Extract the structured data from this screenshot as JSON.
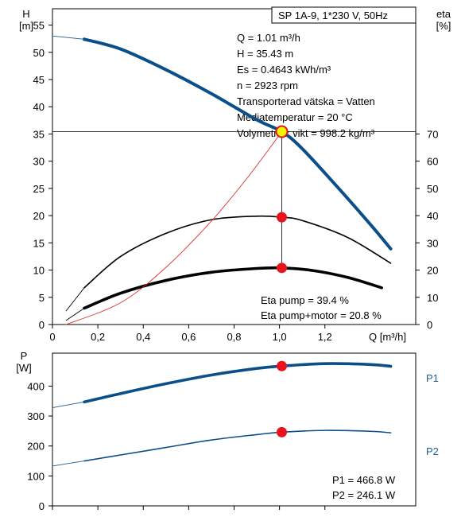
{
  "colors": {
    "curve_blue": "#0a4f8a",
    "thin_blue": "#1f5f94",
    "black": "#000000",
    "red_marker": "#e8141c",
    "yellow_marker": "#f5f500",
    "thin_red": "#e0302c"
  },
  "chart_data": [
    {
      "type": "line",
      "title": "SP 1A-9, 1*230 V, 50Hz",
      "xlabel": "Q [m³/h]",
      "ylabel": "H\n[m]",
      "ylabel_parts": [
        "H",
        "[m]"
      ],
      "y2label_parts": [
        "eta",
        "[%]"
      ],
      "xlim": [
        0,
        1.6
      ],
      "ylim": [
        0,
        58
      ],
      "y2lim": [
        0,
        116
      ],
      "x_ticks": [
        "0",
        "0,2",
        "0,4",
        "0,6",
        "0,8",
        "1,0",
        "1,2"
      ],
      "y_ticks": [
        "0",
        "5",
        "10",
        "15",
        "20",
        "25",
        "30",
        "35",
        "40",
        "45",
        "50",
        "55"
      ],
      "y2_ticks": [
        "0",
        "10",
        "20",
        "30",
        "40",
        "50",
        "60",
        "70"
      ],
      "x_tick_values": [
        0,
        0.2,
        0.4,
        0.6,
        0.8,
        1.0,
        1.2
      ],
      "y_tick_values": [
        0,
        5,
        10,
        15,
        20,
        25,
        30,
        35,
        40,
        45,
        50,
        55
      ],
      "y2_tick_values": [
        0,
        10,
        20,
        30,
        40,
        50,
        60,
        70
      ],
      "info_lines": [
        "Q = 1.01 m³/h",
        "H = 35.43 m",
        "Es = 0.4643 kWh/m³",
        "n = 2923 rpm",
        "Transporterad vätska = Vatten",
        "Mediatemperatur = 20 °C",
        "Volymetrisk vikt = 998.2 kg/m³"
      ],
      "bottom_lines": [
        "Eta pump = 39.4 %",
        "Eta pump+motor = 20.8 %"
      ],
      "duty_point": {
        "x": 1.01,
        "y": 35.43
      },
      "series": [
        {
          "axis": "left",
          "values": [
            [
              0.14,
              52.4
            ],
            [
              0.3,
              50.6
            ],
            [
              0.5,
              46.8
            ],
            [
              0.7,
              42.4
            ],
            [
              0.9,
              37.6
            ],
            [
              1.01,
              35.43
            ],
            [
              1.1,
              32.3
            ],
            [
              1.25,
              25.5
            ],
            [
              1.4,
              18.4
            ],
            [
              1.49,
              13.9
            ]
          ]
        },
        {
          "axis": "left",
          "values": [
            [
              0.0,
              53.0
            ],
            [
              0.14,
              52.4
            ]
          ]
        },
        {
          "axis": "right",
          "values": [
            [
              0.14,
              13.5
            ],
            [
              0.3,
              25.0
            ],
            [
              0.5,
              33.5
            ],
            [
              0.7,
              38.5
            ],
            [
              0.9,
              39.8
            ],
            [
              1.01,
              39.4
            ],
            [
              1.1,
              38.2
            ],
            [
              1.3,
              32.0
            ],
            [
              1.49,
              22.5
            ]
          ]
        },
        {
          "axis": "right",
          "values": [
            [
              0.06,
              5.0
            ],
            [
              0.14,
              13.5
            ]
          ]
        },
        {
          "axis": "right",
          "values": [
            [
              0.14,
              6.0
            ],
            [
              0.3,
              11.5
            ],
            [
              0.5,
              16.2
            ],
            [
              0.7,
              19.2
            ],
            [
              0.9,
              20.6
            ],
            [
              1.01,
              20.8
            ],
            [
              1.15,
              19.8
            ],
            [
              1.3,
              17.3
            ],
            [
              1.45,
              13.5
            ]
          ]
        },
        {
          "axis": "right",
          "values": [
            [
              0.06,
              1.5
            ],
            [
              0.14,
              6.0
            ]
          ]
        },
        {
          "axis": "right",
          "values": [
            [
              0.06,
              0.0
            ],
            [
              0.3,
              8.0
            ],
            [
              0.5,
              21.0
            ],
            [
              0.7,
              38.0
            ],
            [
              0.85,
              53.0
            ],
            [
              0.95,
              64.0
            ],
            [
              1.01,
              70.86
            ]
          ]
        }
      ]
    },
    {
      "type": "line",
      "ylabel_parts": [
        "P",
        "[W]"
      ],
      "xlim": [
        0,
        1.6
      ],
      "ylim": [
        0,
        510
      ],
      "y_ticks": [
        "0",
        "100",
        "200",
        "300",
        "400"
      ],
      "y_tick_values": [
        0,
        100,
        200,
        300,
        400
      ],
      "x_tick_values": [
        0,
        0.2,
        0.4,
        0.6,
        0.8,
        1.0,
        1.2
      ],
      "bottom_lines": [
        "P1 = 466.8 W",
        "P2 = 246.1 W"
      ],
      "series": [
        {
          "name": "P1",
          "values": [
            [
              0.14,
              347
            ],
            [
              0.3,
              375
            ],
            [
              0.5,
              408
            ],
            [
              0.7,
              437
            ],
            [
              0.9,
              459
            ],
            [
              1.01,
              466.8
            ],
            [
              1.2,
              475
            ],
            [
              1.4,
              472
            ],
            [
              1.49,
              466
            ]
          ]
        },
        {
          "name": "",
          "values": [
            [
              0.0,
              328
            ],
            [
              0.14,
              347
            ]
          ]
        },
        {
          "name": "P2",
          "values": [
            [
              0.14,
              150
            ],
            [
              0.3,
              170
            ],
            [
              0.5,
              195
            ],
            [
              0.7,
              220
            ],
            [
              0.9,
              238
            ],
            [
              1.01,
              246.1
            ],
            [
              1.2,
              252
            ],
            [
              1.4,
              249
            ],
            [
              1.49,
              244
            ]
          ]
        },
        {
          "name": "",
          "values": [
            [
              0.0,
              133
            ],
            [
              0.14,
              150
            ]
          ]
        }
      ],
      "markers": [
        {
          "x": 1.01,
          "y": 466.8
        },
        {
          "x": 1.01,
          "y": 246.1
        }
      ]
    }
  ]
}
